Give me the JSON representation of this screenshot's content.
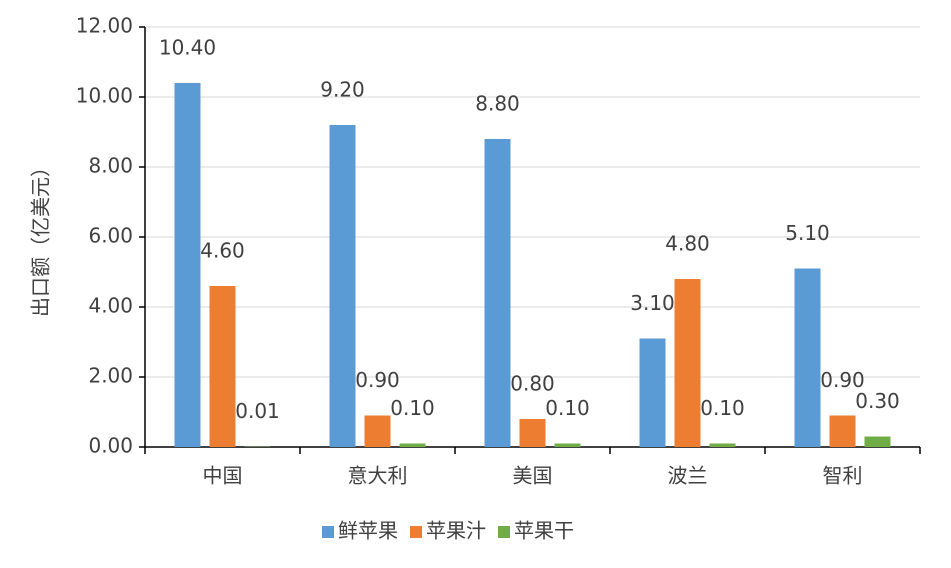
{
  "chart_data": {
    "type": "bar",
    "y_label": "出口额（亿美元）",
    "categories": [
      "中国",
      "意大利",
      "美国",
      "波兰",
      "智利"
    ],
    "series": [
      {
        "name": "鲜苹果",
        "color": "#5b9bd5",
        "values": [
          10.4,
          9.2,
          8.8,
          3.1,
          5.1
        ],
        "value_labels": [
          "10.40",
          "9.20",
          "8.80",
          "3.10",
          "5.10"
        ]
      },
      {
        "name": "苹果汁",
        "color": "#ed7d31",
        "values": [
          4.6,
          0.9,
          0.8,
          4.8,
          0.9
        ],
        "value_labels": [
          "4.60",
          "0.90",
          "0.80",
          "4.80",
          "0.90"
        ]
      },
      {
        "name": "苹果干",
        "color": "#70ad47",
        "values": [
          0.01,
          0.1,
          0.1,
          0.1,
          0.3
        ],
        "value_labels": [
          "0.01",
          "0.10",
          "0.10",
          "0.10",
          "0.30"
        ]
      }
    ],
    "ylim": [
      0,
      12
    ],
    "yticks": [
      {
        "value": 0,
        "label": "0.00"
      },
      {
        "value": 2,
        "label": "2.00"
      },
      {
        "value": 4,
        "label": "4.00"
      },
      {
        "value": 6,
        "label": "6.00"
      },
      {
        "value": 8,
        "label": "8.00"
      },
      {
        "value": 10,
        "label": "10.00"
      },
      {
        "value": 12,
        "label": "12.00"
      }
    ],
    "grid": true,
    "legend": "bottom"
  }
}
